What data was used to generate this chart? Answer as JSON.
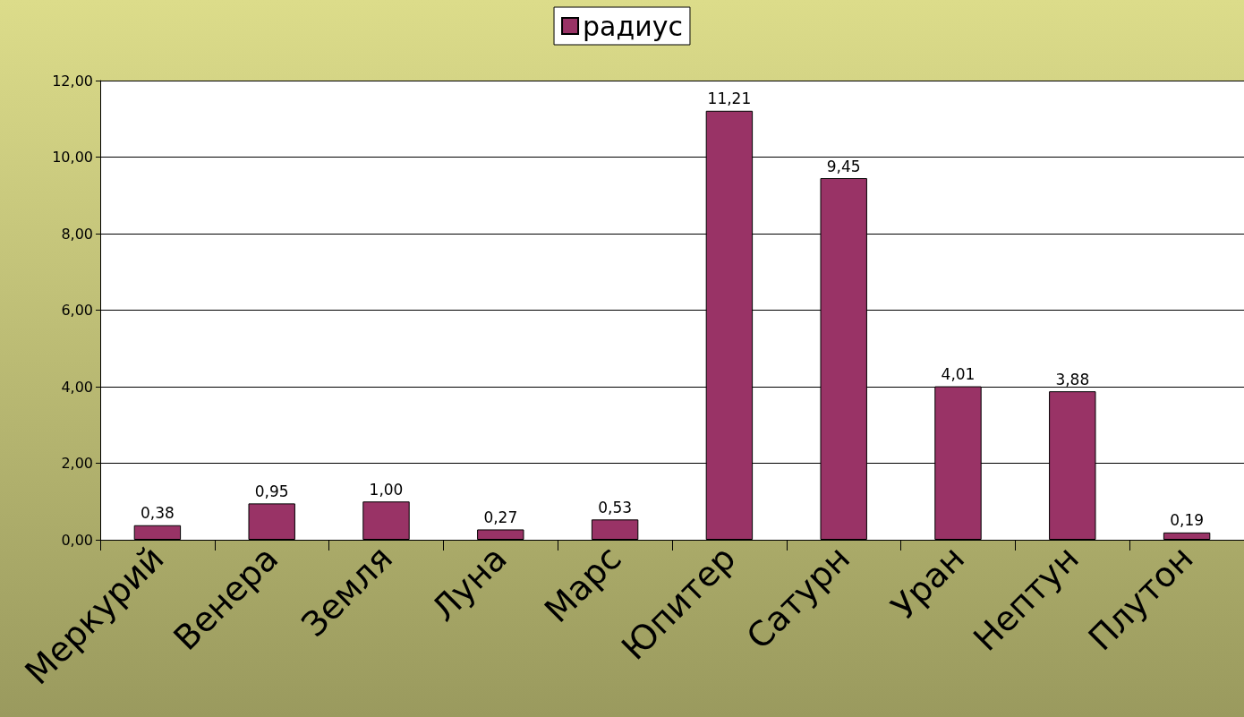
{
  "chart_data": {
    "type": "bar",
    "categories": [
      "Меркурий",
      "Венера",
      "Земля",
      "Луна",
      "Марс",
      "Юпитер",
      "Сатурн",
      "Уран",
      "Нептун",
      "Плутон"
    ],
    "series": [
      {
        "name": "радиус",
        "color": "#993366",
        "values": [
          0.38,
          0.95,
          1.0,
          0.27,
          0.53,
          11.21,
          9.45,
          4.01,
          3.88,
          0.19
        ],
        "value_labels": [
          "0,38",
          "0,95",
          "1,00",
          "0,27",
          "0,53",
          "11,21",
          "9,45",
          "4,01",
          "3,88",
          "0,19"
        ]
      }
    ],
    "ylim": [
      0,
      12
    ],
    "yticks": [
      {
        "value": 0,
        "label": "0,00"
      },
      {
        "value": 2,
        "label": "2,00"
      },
      {
        "value": 4,
        "label": "4,00"
      },
      {
        "value": 6,
        "label": "6,00"
      },
      {
        "value": 8,
        "label": "8,00"
      },
      {
        "value": 10,
        "label": "10,00"
      },
      {
        "value": 12,
        "label": "12,00"
      }
    ],
    "grid": "y",
    "legend": "top"
  }
}
